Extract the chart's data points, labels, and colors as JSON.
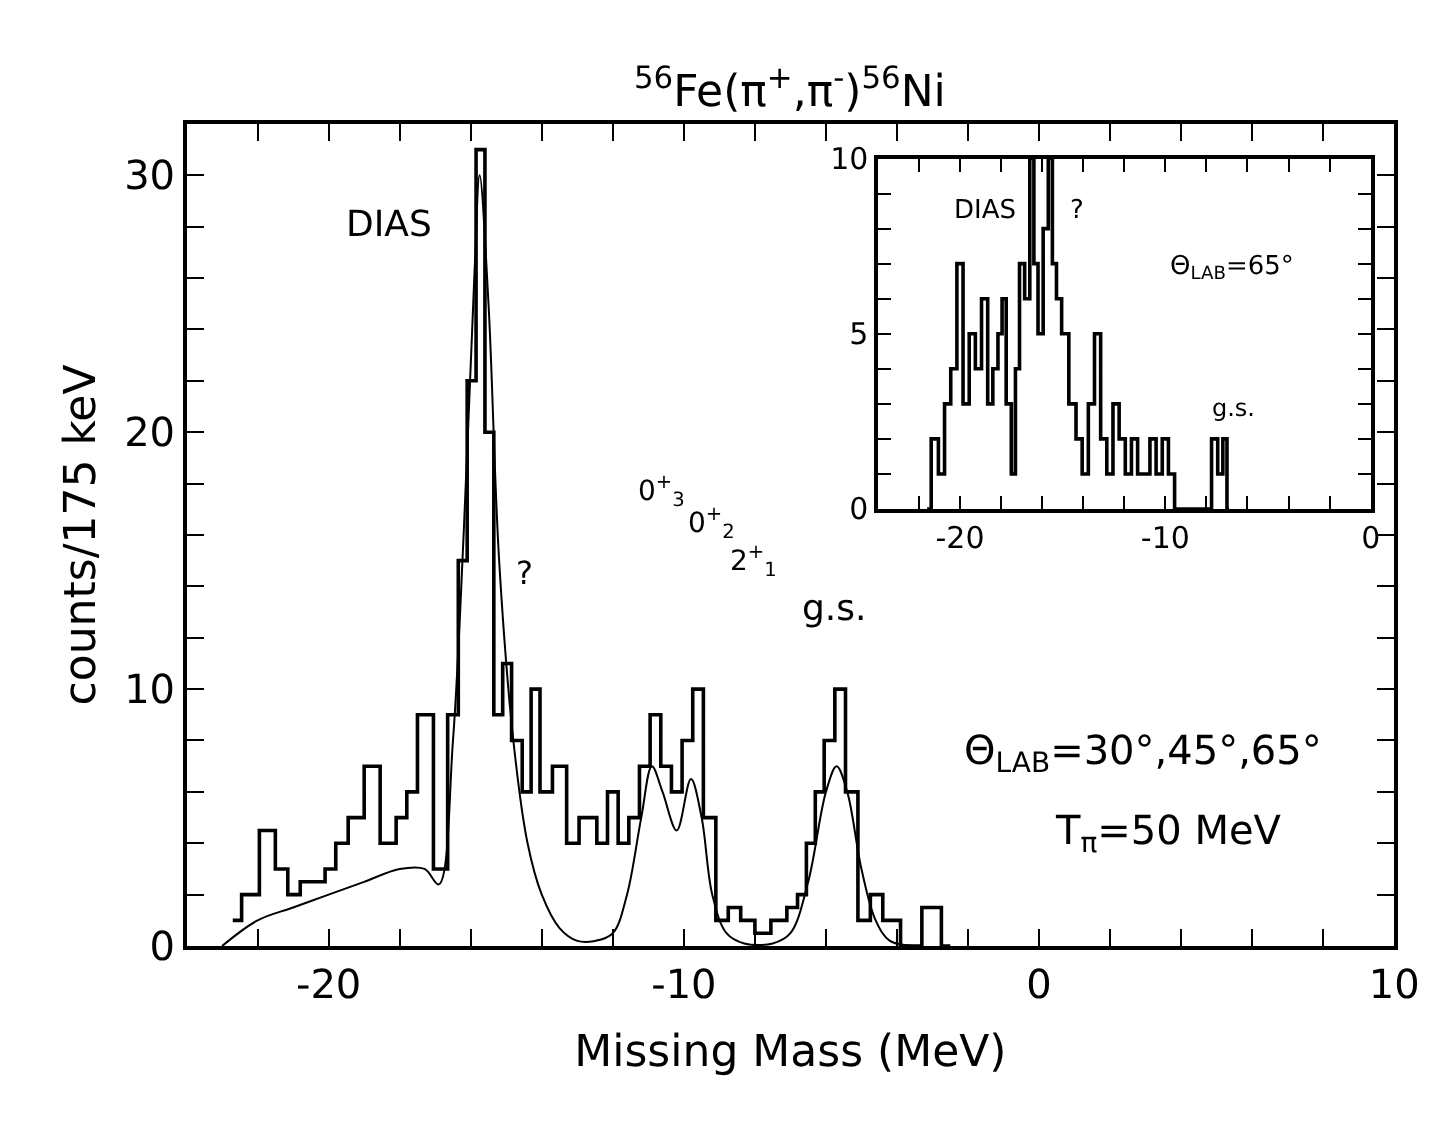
{
  "chart_data": [
    {
      "type": "step",
      "title": "$^{56}$Fe(π$^{+}$,π$^{-}$)$^{56}$Ni",
      "xlabel": "Missing Mass (MeV)",
      "ylabel": "counts/175 keV",
      "xlim": [
        -24,
        10
      ],
      "ylim": [
        0,
        32
      ],
      "xticks": [
        {
          "value": -22,
          "label": null
        },
        -20,
        {
          "value": -18,
          "label": null
        },
        {
          "value": -16,
          "label": null
        },
        {
          "value": -14,
          "label": null
        },
        {
          "value": -12,
          "label": null
        },
        -10,
        {
          "value": -8,
          "label": null
        },
        {
          "value": -6,
          "label": null
        },
        {
          "value": -4,
          "label": null
        },
        {
          "value": -2,
          "label": null
        },
        0,
        {
          "value": 2,
          "label": null
        },
        {
          "value": 4,
          "label": null
        },
        {
          "value": 6,
          "label": null
        },
        {
          "value": 8,
          "label": null
        },
        10
      ],
      "yticks": [
        0,
        {
          "value": 2,
          "label": null
        },
        {
          "value": 4,
          "label": null
        },
        {
          "value": 6,
          "label": null
        },
        {
          "value": 8,
          "label": null
        },
        10,
        {
          "value": 12,
          "label": null
        },
        {
          "value": 14,
          "label": null
        },
        {
          "value": 16,
          "label": null
        },
        {
          "value": 18,
          "label": null
        },
        20,
        {
          "value": 22,
          "label": null
        },
        {
          "value": 24,
          "label": null
        },
        {
          "value": 26,
          "label": null
        },
        {
          "value": 28,
          "label": null
        },
        30
      ],
      "marker": "none",
      "series": [
        {
          "color": "#000000",
          "x": [
            -22.7,
            -22.2,
            -21.7,
            -21.3,
            -21.0,
            -20.6,
            -20.3,
            -19.9,
            -19.7,
            -19.2,
            -18.8,
            -18.3,
            -17.9,
            -17.7,
            -17.3,
            -16.8,
            -16.5,
            -16.2,
            -16.0,
            -15.7,
            -15.5,
            -15.2,
            -15.0,
            -14.7,
            -14.4,
            -14.2,
            -13.9,
            -13.5,
            -13.1,
            -12.8,
            -12.6,
            -12.3,
            -12.0,
            -11.7,
            -11.4,
            -11.1,
            -10.8,
            -10.5,
            -10.2,
            -9.9,
            -9.6,
            -9.3,
            -8.9,
            -8.6,
            -8.2,
            -7.8,
            -7.3,
            -6.9,
            -6.7,
            -6.4,
            -6.2,
            -5.9,
            -5.6,
            -5.3,
            -4.9,
            -4.6,
            -4.2,
            -3.6,
            -3.0,
            -2.5
          ],
          "values": [
            1,
            2,
            4.5,
            3,
            2,
            2.5,
            2.5,
            3,
            4,
            5,
            7,
            4,
            5,
            6,
            9,
            3,
            9,
            15,
            22,
            31,
            20,
            9,
            11,
            8,
            6,
            10,
            6,
            7,
            4,
            5,
            5,
            4,
            6,
            4,
            5,
            7,
            9,
            7,
            6,
            8,
            10,
            5,
            1,
            1.5,
            1,
            0.5,
            1,
            1.5,
            2,
            4,
            6,
            8,
            10,
            6,
            1,
            2,
            1,
            0,
            1.5,
            0
          ]
        },
        {
          "type": "line",
          "color": "#000000",
          "x": [
            -23,
            -22,
            -21,
            -20,
            -19,
            -18,
            -17.3,
            -16.9,
            -16.5,
            -16.2,
            -15.9,
            -15.75,
            -15.5,
            -15.2,
            -14.8,
            -14.4,
            -14,
            -13.5,
            -13,
            -12.5,
            -12,
            -11.6,
            -11.2,
            -10.9,
            -10.6,
            -10.2,
            -9.8,
            -9.5,
            -9.2,
            -8.8,
            -8.3,
            -7.5,
            -7,
            -6.5,
            -6,
            -5.7,
            -5.4,
            -5,
            -4.6,
            -4.2,
            -3.5
          ],
          "values": [
            0,
            1,
            1.5,
            2,
            2.5,
            3,
            3,
            2.4,
            8,
            16,
            26,
            30,
            25,
            15,
            8,
            4,
            2,
            0.7,
            0.2,
            0.2,
            0.5,
            2,
            5,
            7,
            6,
            4.5,
            6.5,
            5,
            2,
            0.5,
            0.1,
            0.1,
            0.5,
            2.5,
            6,
            7,
            6,
            3,
            1,
            0.2,
            0
          ]
        }
      ],
      "annotations": [
        "DIAS",
        "?",
        "0$^{+}$$_{3}$",
        "0$^{+}$$_{2}$",
        "2$^{+}$$_{1}$",
        "g.s.",
        "Θ$_{LAB}$=30°,45°,65°",
        "T$_{π}$=50 MeV"
      ]
    },
    {
      "type": "step",
      "xlim": [
        -24,
        0
      ],
      "ylim": [
        0,
        10
      ],
      "xticks": [
        {
          "value": -22,
          "label": null
        },
        -20,
        {
          "value": -18,
          "label": null
        },
        {
          "value": -16,
          "label": null
        },
        {
          "value": -14,
          "label": null
        },
        {
          "value": -12,
          "label": null
        },
        -10,
        {
          "value": -8,
          "label": null
        },
        {
          "value": -6,
          "label": null
        },
        {
          "value": -4,
          "label": null
        },
        {
          "value": -2,
          "label": null
        },
        0
      ],
      "yticks": [
        0,
        {
          "value": 1,
          "label": null
        },
        {
          "value": 2,
          "label": null
        },
        {
          "value": 3,
          "label": null
        },
        {
          "value": 4,
          "label": null
        },
        5,
        {
          "value": 6,
          "label": null
        },
        {
          "value": 7,
          "label": null
        },
        {
          "value": 8,
          "label": null
        },
        {
          "value": 9,
          "label": null
        },
        10
      ],
      "marker": "none",
      "series": [
        {
          "color": "#000000",
          "x": [
            -21.6,
            -21.2,
            -20.9,
            -20.6,
            -20.3,
            -20.0,
            -19.7,
            -19.4,
            -19.1,
            -18.8,
            -18.5,
            -18.3,
            -18.0,
            -17.9,
            -17.6,
            -17.4,
            -17.2,
            -17.0,
            -16.7,
            -16.5,
            -16.3,
            -16.1,
            -15.8,
            -15.6,
            -15.4,
            -15.2,
            -14.9,
            -14.5,
            -14.2,
            -13.9,
            -13.6,
            -13.3,
            -13.0,
            -12.7,
            -12.4,
            -12.1,
            -11.8,
            -11.5,
            -11.2,
            -10.9,
            -10.6,
            -10.3,
            -10.0,
            -9.7,
            -9.4,
            -8.5,
            -7.9,
            -7.6,
            -7.3,
            -7.1,
            -6.9
          ],
          "values": [
            0,
            2,
            1,
            3,
            4,
            7,
            3,
            5,
            4,
            6,
            3,
            4,
            5,
            6,
            3,
            1,
            4,
            7,
            6,
            10,
            7,
            5,
            8,
            10,
            7,
            6,
            5,
            3,
            2,
            1,
            3,
            5,
            2,
            1,
            3,
            2,
            1,
            2,
            1,
            1,
            2,
            1,
            2,
            1,
            0,
            0,
            0,
            2,
            1,
            2,
            0
          ]
        }
      ],
      "annotations": [
        "DIAS",
        "?",
        "g.s.",
        "Θ$_{LAB}$=65°"
      ]
    }
  ]
}
